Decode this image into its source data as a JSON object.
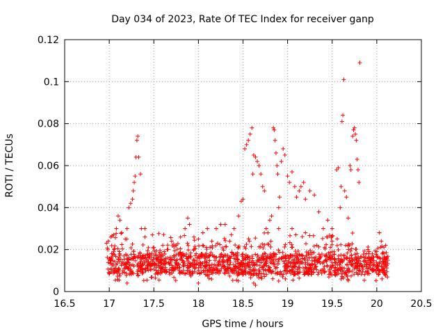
{
  "chart_data": {
    "type": "scatter",
    "title": "Day 034 of 2023, Rate Of TEC Index for receiver ganp",
    "xlabel": "GPS time / hours",
    "ylabel": "ROTI / TECUs",
    "xlim": [
      16.5,
      20.5
    ],
    "ylim": [
      0,
      0.12
    ],
    "x_ticks": [
      "16.5",
      "17",
      "17.5",
      "18",
      "18.5",
      "19",
      "19.5",
      "20",
      "20.5"
    ],
    "y_ticks": [
      "0",
      "0.02",
      "0.04",
      "0.06",
      "0.08",
      "0.1",
      "0.12"
    ],
    "grid": true,
    "marker": "+",
    "color": "#ff0000",
    "series": [
      {
        "name": "ROTI",
        "sampling": "approximate: baseline band 17.0-20.1 h with values mostly 0.005-0.02 TECU, plus episodic enhancements listed below",
        "points": [
          [
            16.97,
            0.023
          ],
          [
            16.99,
            0.024
          ],
          [
            17.02,
            0.026
          ],
          [
            17.05,
            0.027
          ],
          [
            17.08,
            0.03
          ],
          [
            17.1,
            0.036
          ],
          [
            17.12,
            0.034
          ],
          [
            17.14,
            0.028
          ],
          [
            17.18,
            0.025
          ],
          [
            17.2,
            0.03
          ],
          [
            17.22,
            0.04
          ],
          [
            17.24,
            0.042
          ],
          [
            17.26,
            0.044
          ],
          [
            17.27,
            0.048
          ],
          [
            17.28,
            0.052
          ],
          [
            17.29,
            0.055
          ],
          [
            17.3,
            0.064
          ],
          [
            17.31,
            0.072
          ],
          [
            17.32,
            0.074
          ],
          [
            17.33,
            0.064
          ],
          [
            17.35,
            0.056
          ],
          [
            17.36,
            0.03
          ],
          [
            17.4,
            0.026
          ],
          [
            17.5,
            0.021
          ],
          [
            17.6,
            0.022
          ],
          [
            17.7,
            0.024
          ],
          [
            17.8,
            0.026
          ],
          [
            17.88,
            0.035
          ],
          [
            17.9,
            0.032
          ],
          [
            17.95,
            0.026
          ],
          [
            18.0,
            0.025
          ],
          [
            18.05,
            0.028
          ],
          [
            18.1,
            0.03
          ],
          [
            18.15,
            0.024
          ],
          [
            18.2,
            0.03
          ],
          [
            18.25,
            0.032
          ],
          [
            18.3,
            0.032
          ],
          [
            18.4,
            0.03
          ],
          [
            18.45,
            0.036
          ],
          [
            18.48,
            0.043
          ],
          [
            18.5,
            0.044
          ],
          [
            18.52,
            0.068
          ],
          [
            18.54,
            0.07
          ],
          [
            18.56,
            0.072
          ],
          [
            18.58,
            0.075
          ],
          [
            18.6,
            0.078
          ],
          [
            18.61,
            0.056
          ],
          [
            18.62,
            0.065
          ],
          [
            18.64,
            0.064
          ],
          [
            18.66,
            0.062
          ],
          [
            18.68,
            0.06
          ],
          [
            18.7,
            0.056
          ],
          [
            18.72,
            0.05
          ],
          [
            18.74,
            0.048
          ],
          [
            18.76,
            0.03
          ],
          [
            18.78,
            0.028
          ],
          [
            18.8,
            0.034
          ],
          [
            18.82,
            0.036
          ],
          [
            18.84,
            0.078
          ],
          [
            18.85,
            0.077
          ],
          [
            18.86,
            0.072
          ],
          [
            18.87,
            0.066
          ],
          [
            18.88,
            0.06
          ],
          [
            18.89,
            0.056
          ],
          [
            18.9,
            0.04
          ],
          [
            18.91,
            0.045
          ],
          [
            18.93,
            0.062
          ],
          [
            18.95,
            0.068
          ],
          [
            18.97,
            0.065
          ],
          [
            19.0,
            0.055
          ],
          [
            19.02,
            0.052
          ],
          [
            19.05,
            0.057
          ],
          [
            19.08,
            0.05
          ],
          [
            19.1,
            0.045
          ],
          [
            19.13,
            0.048
          ],
          [
            19.15,
            0.05
          ],
          [
            19.18,
            0.052
          ],
          [
            19.2,
            0.044
          ],
          [
            19.25,
            0.048
          ],
          [
            19.3,
            0.046
          ],
          [
            19.35,
            0.038
          ],
          [
            19.4,
            0.03
          ],
          [
            19.45,
            0.034
          ],
          [
            19.5,
            0.03
          ],
          [
            19.55,
            0.058
          ],
          [
            19.57,
            0.059
          ],
          [
            19.59,
            0.04
          ],
          [
            19.6,
            0.05
          ],
          [
            19.61,
            0.081
          ],
          [
            19.62,
            0.084
          ],
          [
            19.63,
            0.101
          ],
          [
            19.64,
            0.048
          ],
          [
            19.66,
            0.045
          ],
          [
            19.68,
            0.035
          ],
          [
            19.7,
            0.06
          ],
          [
            19.71,
            0.058
          ],
          [
            19.73,
            0.074
          ],
          [
            19.74,
            0.077
          ],
          [
            19.75,
            0.078
          ],
          [
            19.76,
            0.075
          ],
          [
            19.77,
            0.072
          ],
          [
            19.78,
            0.063
          ],
          [
            19.79,
            0.058
          ],
          [
            19.8,
            0.052
          ],
          [
            19.81,
            0.109
          ],
          [
            19.95,
            0.018
          ],
          [
            20.0,
            0.019
          ],
          [
            20.03,
            0.028
          ],
          [
            20.05,
            0.024
          ],
          [
            20.08,
            0.014
          ],
          [
            20.1,
            0.012
          ],
          [
            17.4,
            0.03
          ],
          [
            17.45,
            0.018
          ],
          [
            17.55,
            0.016
          ],
          [
            17.65,
            0.02
          ],
          [
            17.75,
            0.022
          ],
          [
            17.85,
            0.03
          ],
          [
            18.05,
            0.022
          ],
          [
            18.35,
            0.024
          ],
          [
            18.9,
            0.03
          ],
          [
            19.05,
            0.03
          ],
          [
            19.2,
            0.028
          ],
          [
            19.45,
            0.026
          ],
          [
            19.5,
            0.024
          ],
          [
            19.65,
            0.022
          ],
          [
            19.9,
            0.02
          ],
          [
            20.1,
            0.022
          ],
          [
            18.62,
            0.004
          ],
          [
            18.64,
            0.003
          ],
          [
            17.2,
            0.004
          ],
          [
            18.0,
            0.004
          ],
          [
            18.9,
            0.005
          ],
          [
            19.6,
            0.006
          ]
        ]
      }
    ]
  }
}
